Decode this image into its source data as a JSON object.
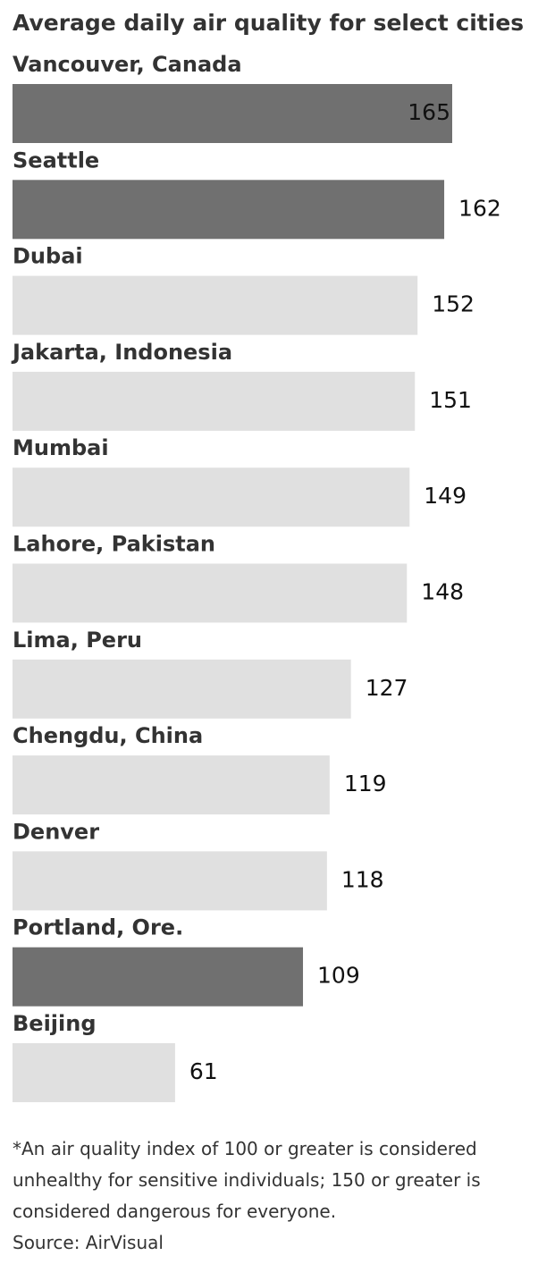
{
  "chart_data": {
    "type": "bar",
    "orientation": "horizontal",
    "title": "Average daily air quality for select cities",
    "categories": [
      "Vancouver, Canada",
      "Seattle",
      "Dubai",
      "Jakarta, Indonesia",
      "Mumbai",
      "Lahore, Pakistan",
      "Lima, Peru",
      "Chengdu, China",
      "Denver",
      "Portland, Ore.",
      "Beijing"
    ],
    "values": [
      165,
      162,
      152,
      151,
      149,
      148,
      127,
      119,
      118,
      109,
      61
    ],
    "colors": [
      "#707070",
      "#707070",
      "#e0e0e0",
      "#e0e0e0",
      "#e0e0e0",
      "#e0e0e0",
      "#e0e0e0",
      "#e0e0e0",
      "#e0e0e0",
      "#707070",
      "#e0e0e0"
    ],
    "notes": [
      "*An air quality index of 100 or greater is considered",
      "unhealthy for sensitive individuals; 150 or greater is",
      "considered dangerous for everyone."
    ],
    "source": "Source: AirVisual"
  }
}
